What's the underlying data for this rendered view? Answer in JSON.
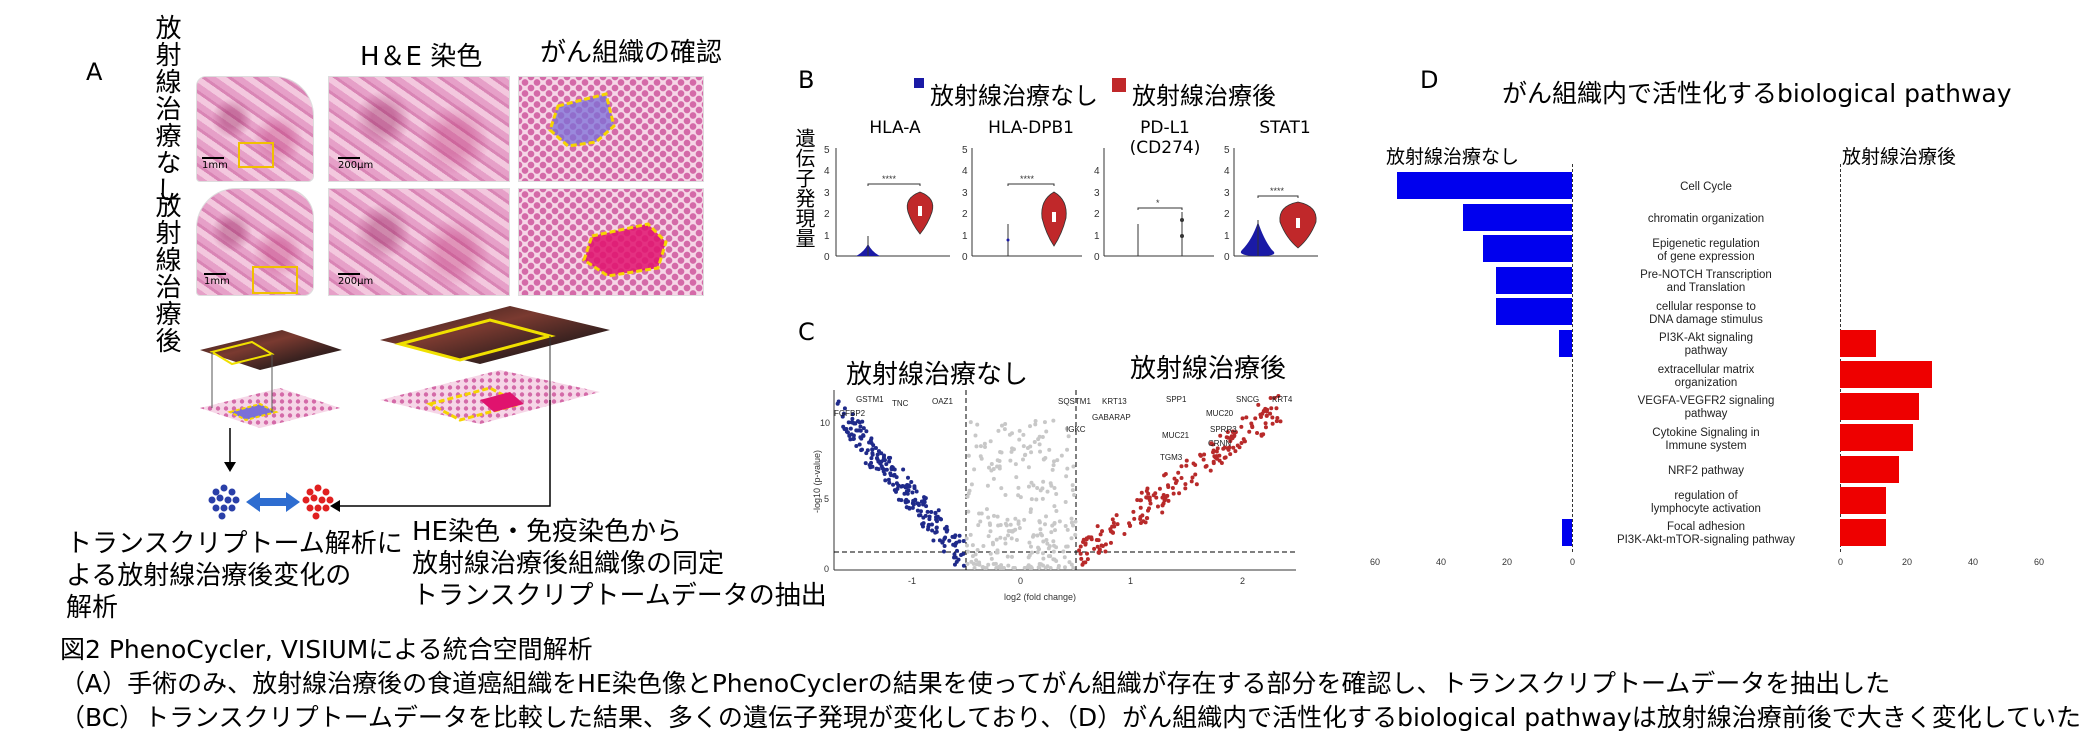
{
  "panel_a": {
    "label": "A",
    "row1_label": "放射線治療なし",
    "row2_label": "放射線治療後",
    "col2_header": "H＆E 染色",
    "col3_header": "がん組織の確認",
    "scale_1mm": "1mm",
    "scale_200um": "200μm",
    "text_left": [
      "トランスクリプトーム解析に",
      "よる放射線治療後変化の",
      "解析"
    ],
    "text_right": [
      "HE染色・免疫染色から",
      "放射線治療後組織像の同定",
      "トランスクリプトームデータの抽出"
    ]
  },
  "panel_b": {
    "label": "B",
    "legend_none": "放射線治療なし",
    "legend_after": "放射線治療後",
    "color_none": "#1a1aa6",
    "color_after": "#c0282a",
    "ylabel": "遺伝子発現量",
    "genes": [
      {
        "name": "HLA-A",
        "sig": "****"
      },
      {
        "name": "HLA-DPB1",
        "sig": "****"
      },
      {
        "name": "PD-L1\n(CD274)",
        "sig": "*"
      },
      {
        "name": "STAT1",
        "sig": "****"
      }
    ],
    "yticks": [
      "5",
      "4",
      "3",
      "2",
      "1",
      "0"
    ]
  },
  "panel_c": {
    "label": "C",
    "left_title": "放射線治療なし",
    "right_title": "放射線治療後",
    "xlabel": "log2 (fold change)",
    "ylabel": "-log10 (p-value)",
    "xticks": [
      "-1",
      "0",
      "1",
      "2"
    ],
    "yticks": [
      "10",
      "5",
      "0"
    ],
    "genes_left": [
      "GSTM1",
      "FGFBP2",
      "TNC",
      "OAZ1"
    ],
    "genes_right": [
      "SQSTM1",
      "KRT13",
      "SPP1",
      "SNCG",
      "KRT4",
      "IGKC",
      "GABARAP",
      "MUC20",
      "SPRR3",
      "MUC21",
      "CRNN",
      "TGM3"
    ]
  },
  "panel_d": {
    "label": "D",
    "title": "がん組織内で活性化するbiological pathway",
    "left_header": "放射線治療なし",
    "right_header": "放射線治療後",
    "bar_color": "#0000ee",
    "bar_color_after": "#ee0000",
    "xticks_left": [
      "60",
      "40",
      "20",
      "0"
    ],
    "xticks_right": [
      "0",
      "20",
      "40",
      "60"
    ]
  },
  "chart_data": {
    "type": "bar",
    "title": "がん組織内で活性化するbiological pathway",
    "categories": [
      "Cell Cycle",
      "chromatin organization",
      "Epigenetic regulation\nof gene expression",
      "Pre-NOTCH Transcription\nand Translation",
      "cellular response to\nDNA damage stimulus",
      "PI3K-Akt signaling\npathway",
      "extracellular matrix\norganization",
      "VEGFA-VEGFR2 signaling\npathway",
      "Cytokine Signaling in\nImmune system",
      "NRF2 pathway",
      "regulation of\nlymphocyte activation",
      "Focal adhesion\nPI3K-Akt-mTOR-signaling pathway"
    ],
    "series": [
      {
        "name": "放射線治療なし",
        "values": [
          53,
          33,
          27,
          23,
          23,
          4,
          0,
          0,
          0,
          0,
          0,
          3
        ]
      },
      {
        "name": "放射線治療後",
        "values": [
          0,
          0,
          0,
          0,
          0,
          11,
          28,
          24,
          22,
          18,
          14,
          14
        ]
      }
    ],
    "xlim": [
      0,
      60
    ]
  },
  "caption": {
    "line1": "図2 PhenoCycler, VISIUMによる統合空間解析",
    "line2": "（A）手術のみ、放射線治療後の食道癌組織をHE染色像とPhenoCyclerの結果を使ってがん組織が存在する部分を確認し、トランスクリプトームデータを抽出した",
    "line3": "（BC）トランスクリプトームデータを比較した結果、多くの遺伝子発現が変化しており、（D）がん組織内で活性化するbiological pathwayは放射線治療前後で大きく変化していた"
  }
}
